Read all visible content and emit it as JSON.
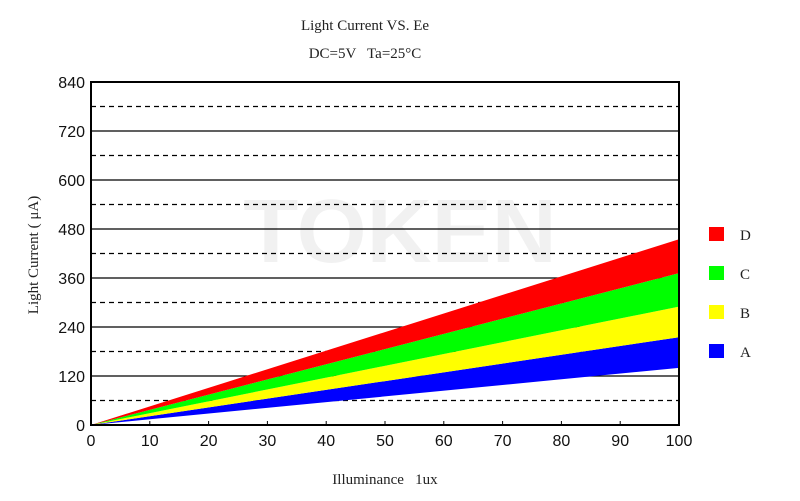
{
  "chart_data": {
    "type": "area",
    "title": "Light Current VS. Ee",
    "subtitle": "DC=5V   Ta=25°C",
    "xlabel": "Illuminance   1ux",
    "ylabel": "Light Current ( μA)",
    "xlim": [
      0,
      100
    ],
    "ylim": [
      0,
      840
    ],
    "x_ticks": [
      "0",
      "10",
      "20",
      "30",
      "40",
      "50",
      "60",
      "70",
      "80",
      "90",
      "100"
    ],
    "y_ticks": [
      "0",
      "120",
      "240",
      "360",
      "480",
      "600",
      "720",
      "840"
    ],
    "grid": {
      "solid_every": 120,
      "dashed_offsets": [
        60,
        180,
        300,
        420,
        540,
        660,
        780
      ]
    },
    "legend_position": "right",
    "watermark": "TOKEN",
    "band_x": [
      0,
      100
    ],
    "series": [
      {
        "name": "A",
        "color": "#0000ff",
        "lower": [
          0,
          140
        ],
        "upper": [
          0,
          215
        ]
      },
      {
        "name": "B",
        "color": "#ffff00",
        "lower": [
          0,
          215
        ],
        "upper": [
          0,
          290
        ]
      },
      {
        "name": "C",
        "color": "#00ff00",
        "lower": [
          0,
          290
        ],
        "upper": [
          0,
          372
        ]
      },
      {
        "name": "D",
        "color": "#ff0000",
        "lower": [
          0,
          372
        ],
        "upper": [
          0,
          455
        ]
      }
    ]
  }
}
